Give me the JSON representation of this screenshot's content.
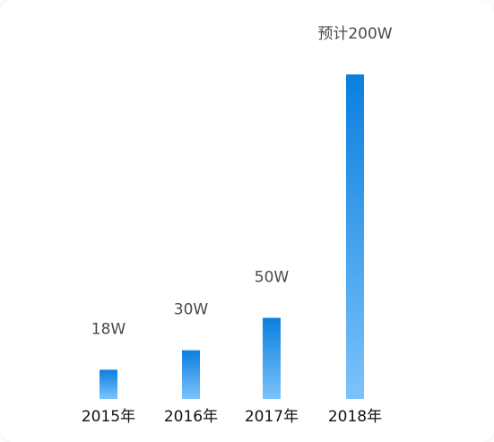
{
  "chart_data": {
    "type": "bar",
    "categories": [
      "2015年",
      "2016年",
      "2017年",
      "2018年"
    ],
    "values": [
      18,
      30,
      50,
      200
    ],
    "data_labels": [
      "18W",
      "30W",
      "50W",
      "预计200W"
    ],
    "title": "",
    "xlabel": "",
    "ylabel": "",
    "ylim": [
      0,
      200
    ],
    "grid": false,
    "legend": "none",
    "colors": {
      "bar_top": "#0a7fdf",
      "bar_bottom": "#7cc3fb",
      "label_text": "#4a4a4a",
      "tick_text": "#111111"
    }
  }
}
